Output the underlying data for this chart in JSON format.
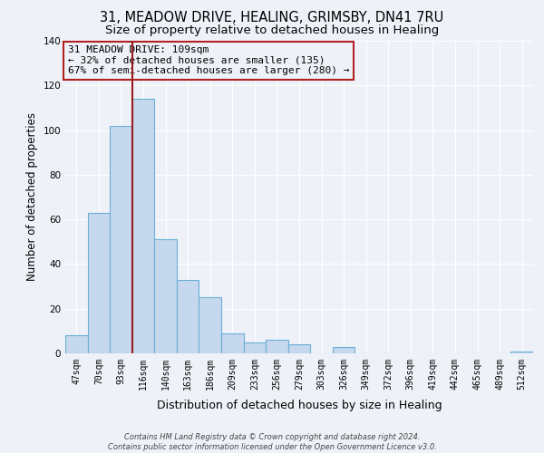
{
  "title": "31, MEADOW DRIVE, HEALING, GRIMSBY, DN41 7RU",
  "subtitle": "Size of property relative to detached houses in Healing",
  "xlabel": "Distribution of detached houses by size in Healing",
  "ylabel": "Number of detached properties",
  "bar_labels": [
    "47sqm",
    "70sqm",
    "93sqm",
    "116sqm",
    "140sqm",
    "163sqm",
    "186sqm",
    "209sqm",
    "233sqm",
    "256sqm",
    "279sqm",
    "303sqm",
    "326sqm",
    "349sqm",
    "372sqm",
    "396sqm",
    "419sqm",
    "442sqm",
    "465sqm",
    "489sqm",
    "512sqm"
  ],
  "bar_values": [
    8,
    63,
    102,
    114,
    51,
    33,
    25,
    9,
    5,
    6,
    4,
    0,
    3,
    0,
    0,
    0,
    0,
    0,
    0,
    0,
    1
  ],
  "bar_color": "#c5d8ed",
  "bar_edge_color": "#6aaed6",
  "ylim": [
    0,
    140
  ],
  "yticks": [
    0,
    20,
    40,
    60,
    80,
    100,
    120,
    140
  ],
  "vline_color": "#9b1c1c",
  "annotation_title": "31 MEADOW DRIVE: 109sqm",
  "annotation_line1": "← 32% of detached houses are smaller (135)",
  "annotation_line2": "67% of semi-detached houses are larger (280) →",
  "annotation_box_color": "#b22222",
  "footer_line1": "Contains HM Land Registry data © Crown copyright and database right 2024.",
  "footer_line2": "Contains public sector information licensed under the Open Government Licence v3.0.",
  "bg_color": "#eef2f8",
  "grid_color": "#ffffff",
  "title_fontsize": 10.5,
  "subtitle_fontsize": 9.5,
  "ylabel_fontsize": 8.5,
  "xlabel_fontsize": 9,
  "tick_fontsize": 7,
  "footer_fontsize": 6,
  "ann_fontsize": 8
}
